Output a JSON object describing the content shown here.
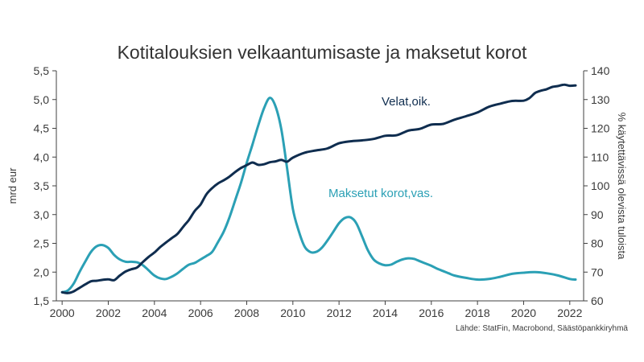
{
  "chart_data": {
    "type": "line",
    "title": "Kotitalouksien velkaantumisaste ja maksetut korot",
    "ylabel_left": "mrd eur",
    "ylabel_right": "% käytettävissä olevista tuloista",
    "source": "Lähde: StatFin, Macrobond, Säästöpankkiryhmä",
    "x_ticks": [
      "2000",
      "2002",
      "2004",
      "2006",
      "2008",
      "2010",
      "2012",
      "2014",
      "2016",
      "2018",
      "2020",
      "2022"
    ],
    "y_left_ticks": [
      "1,5",
      "2,0",
      "2,5",
      "3,0",
      "3,5",
      "4,0",
      "4,5",
      "5,0",
      "5,5"
    ],
    "y_right_ticks": [
      "60",
      "70",
      "80",
      "90",
      "100",
      "110",
      "120",
      "130",
      "140"
    ],
    "xlim": [
      1999.75,
      2022.6
    ],
    "ylim_left": [
      1.5,
      5.5
    ],
    "ylim_right": [
      60,
      140
    ],
    "grid": false,
    "series": [
      {
        "name": "Maksetut korot,vas.",
        "axis": "left",
        "color": "#2ba0b5",
        "x": [
          2000.0,
          2000.25,
          2000.5,
          2000.75,
          2001.0,
          2001.25,
          2001.5,
          2001.75,
          2002.0,
          2002.25,
          2002.5,
          2002.75,
          2003.0,
          2003.25,
          2003.5,
          2003.75,
          2004.0,
          2004.25,
          2004.5,
          2004.75,
          2005.0,
          2005.25,
          2005.5,
          2005.75,
          2006.0,
          2006.25,
          2006.5,
          2006.75,
          2007.0,
          2007.25,
          2007.5,
          2007.75,
          2008.0,
          2008.25,
          2008.5,
          2008.75,
          2009.0,
          2009.25,
          2009.5,
          2009.75,
          2010.0,
          2010.25,
          2010.5,
          2010.75,
          2011.0,
          2011.25,
          2011.5,
          2011.75,
          2012.0,
          2012.25,
          2012.5,
          2012.75,
          2013.0,
          2013.25,
          2013.5,
          2013.75,
          2014.0,
          2014.25,
          2014.5,
          2014.75,
          2015.0,
          2015.25,
          2015.5,
          2015.75,
          2016.0,
          2016.25,
          2016.5,
          2016.75,
          2017.0,
          2017.5,
          2018.0,
          2018.5,
          2019.0,
          2019.5,
          2020.0,
          2020.5,
          2021.0,
          2021.5,
          2022.0,
          2022.25
        ],
        "y": [
          1.65,
          1.68,
          1.8,
          2.0,
          2.18,
          2.35,
          2.45,
          2.47,
          2.42,
          2.3,
          2.22,
          2.18,
          2.18,
          2.17,
          2.12,
          2.03,
          1.94,
          1.89,
          1.88,
          1.92,
          1.98,
          2.06,
          2.13,
          2.16,
          2.22,
          2.28,
          2.35,
          2.52,
          2.7,
          2.95,
          3.25,
          3.55,
          3.9,
          4.22,
          4.55,
          4.85,
          5.03,
          4.88,
          4.48,
          3.8,
          3.1,
          2.72,
          2.45,
          2.35,
          2.35,
          2.42,
          2.55,
          2.7,
          2.85,
          2.94,
          2.95,
          2.85,
          2.62,
          2.38,
          2.22,
          2.15,
          2.12,
          2.13,
          2.18,
          2.22,
          2.24,
          2.23,
          2.19,
          2.15,
          2.11,
          2.06,
          2.02,
          1.98,
          1.94,
          1.9,
          1.87,
          1.88,
          1.92,
          1.97,
          1.99,
          2.0,
          1.98,
          1.94,
          1.88,
          1.87
        ]
      },
      {
        "name": "Velat,oik.",
        "axis": "right",
        "color": "#0f2d4f",
        "x": [
          2000.0,
          2000.25,
          2000.5,
          2000.75,
          2001.0,
          2001.25,
          2001.5,
          2001.75,
          2002.0,
          2002.25,
          2002.5,
          2002.75,
          2003.0,
          2003.25,
          2003.5,
          2003.75,
          2004.0,
          2004.25,
          2004.5,
          2004.75,
          2005.0,
          2005.25,
          2005.5,
          2005.75,
          2006.0,
          2006.25,
          2006.5,
          2006.75,
          2007.0,
          2007.25,
          2007.5,
          2007.75,
          2008.0,
          2008.25,
          2008.5,
          2008.75,
          2009.0,
          2009.25,
          2009.5,
          2009.75,
          2010.0,
          2010.5,
          2011.0,
          2011.5,
          2012.0,
          2012.5,
          2013.0,
          2013.5,
          2014.0,
          2014.5,
          2015.0,
          2015.5,
          2016.0,
          2016.5,
          2017.0,
          2017.5,
          2018.0,
          2018.5,
          2019.0,
          2019.5,
          2020.0,
          2020.25,
          2020.5,
          2020.75,
          2021.0,
          2021.25,
          2021.5,
          2021.75,
          2022.0,
          2022.25
        ],
        "y": [
          63,
          62.7,
          63.3,
          64.5,
          65.7,
          66.8,
          67.0,
          67.3,
          67.5,
          67.2,
          68.8,
          70.2,
          71.0,
          71.6,
          73.5,
          75.3,
          76.8,
          78.7,
          80.3,
          81.8,
          83.3,
          85.8,
          88.2,
          91.3,
          93.5,
          97.0,
          99.2,
          100.8,
          101.9,
          103.2,
          104.8,
          106.2,
          107.2,
          108.1,
          107.3,
          107.5,
          108.2,
          108.5,
          109.0,
          108.4,
          109.8,
          111.5,
          112.3,
          113.0,
          114.8,
          115.5,
          115.8,
          116.3,
          117.4,
          117.6,
          119.2,
          119.8,
          121.3,
          121.5,
          123.0,
          124.2,
          125.5,
          127.5,
          128.6,
          129.5,
          129.6,
          130.5,
          132.3,
          133.1,
          133.6,
          134.4,
          134.7,
          135.2,
          134.8,
          134.9
        ]
      }
    ]
  }
}
